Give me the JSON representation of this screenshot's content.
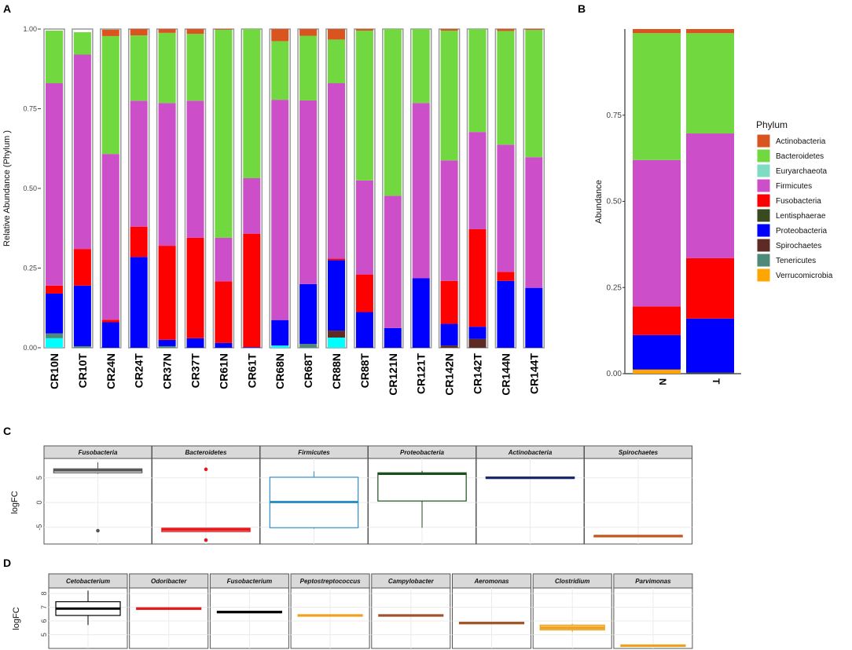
{
  "panel_labels": {
    "a": "A",
    "b": "B",
    "c": "C",
    "d": "D"
  },
  "colors": {
    "Actinobacteria": "#d9541e",
    "Bacteroidetes": "#72d840",
    "Euryarchaeota": "#7fdcc4",
    "Firmicutes": "#cc4fc9",
    "Fusobacteria": "#ff0000",
    "Lentisphaerae": "#3a4a20",
    "Proteobacteria": "#0000ff",
    "Spirochaetes": "#5e2a24",
    "Tenericutes": "#4d8a7a",
    "Verrucomicrobia": "#ffa500",
    "cyan": "#00ffff"
  },
  "chart_data": [
    {
      "panel": "A",
      "type": "bar",
      "stacked": true,
      "ylabel": "Relative Abundance (Phylum )",
      "ylim": [
        0,
        1
      ],
      "yticks": [
        "0.00",
        "0.25",
        "0.50",
        "0.75",
        "1.00"
      ],
      "categories": [
        "CR10N",
        "CR10T",
        "CR24N",
        "CR24T",
        "CR37N",
        "CR37T",
        "CR61N",
        "CR61T",
        "CR68N",
        "CR68T",
        "CR88N",
        "CR88T",
        "CR121N",
        "CR121T",
        "CR142N",
        "CR142T",
        "CR144N",
        "CR144T"
      ],
      "series": [
        {
          "color": "#00ffff",
          "values": [
            0.03,
            0,
            0,
            0,
            0,
            0,
            0,
            0,
            0.007,
            0,
            0.032,
            0,
            0,
            0,
            0,
            0,
            0,
            0
          ]
        },
        {
          "color": "#4d8a7a",
          "values": [
            0.015,
            0.005,
            0,
            0,
            0.005,
            0,
            0,
            0,
            0,
            0.012,
            0,
            0,
            0,
            0,
            0,
            0,
            0,
            0
          ]
        },
        {
          "color": "#5e2a24",
          "values": [
            0,
            0,
            0,
            0,
            0,
            0,
            0,
            0,
            0,
            0,
            0.022,
            0,
            0,
            0,
            0.007,
            0.028,
            0,
            0
          ]
        },
        {
          "color": "#0000ff",
          "values": [
            0.125,
            0.19,
            0.08,
            0.285,
            0.02,
            0.03,
            0.015,
            0.002,
            0.08,
            0.188,
            0.221,
            0.112,
            0.062,
            0.218,
            0.068,
            0.038,
            0.21,
            0.188
          ]
        },
        {
          "color": "#ff0000",
          "values": [
            0.025,
            0.115,
            0.008,
            0.095,
            0.295,
            0.315,
            0.193,
            0.356,
            0,
            0,
            0.005,
            0.118,
            0,
            0,
            0.135,
            0.306,
            0.028,
            0
          ]
        },
        {
          "color": "#cc4fc9",
          "values": [
            0.635,
            0.61,
            0.52,
            0.395,
            0.448,
            0.43,
            0.137,
            0.174,
            0.691,
            0.576,
            0.55,
            0.295,
            0.415,
            0.55,
            0.378,
            0.305,
            0.399,
            0.41
          ]
        },
        {
          "color": "#72d840",
          "values": [
            0.165,
            0.07,
            0.37,
            0.205,
            0.22,
            0.21,
            0.653,
            0.468,
            0.184,
            0.203,
            0.137,
            0.47,
            0.523,
            0.232,
            0.407,
            0.323,
            0.357,
            0.399
          ]
        },
        {
          "color": "#d9541e",
          "values": [
            0,
            0,
            0.02,
            0.02,
            0.012,
            0.015,
            0.002,
            0,
            0.038,
            0.021,
            0.033,
            0.005,
            0,
            0,
            0.005,
            0,
            0.006,
            0.003
          ]
        }
      ]
    },
    {
      "panel": "B",
      "type": "bar",
      "stacked": true,
      "ylabel": "Abundance",
      "ylim": [
        0,
        1
      ],
      "yticks": [
        "0.00",
        "0.25",
        "0.50",
        "0.75"
      ],
      "categories": [
        "N",
        "T"
      ],
      "legend": {
        "title": "Phylum",
        "position": "right",
        "entries": [
          "Actinobacteria",
          "Bacteroidetes",
          "Euryarchaeota",
          "Firmicutes",
          "Fusobacteria",
          "Lentisphaerae",
          "Proteobacteria",
          "Spirochaetes",
          "Tenericutes",
          "Verrucomicrobia"
        ]
      },
      "series": [
        {
          "name": "Verrucomicrobia",
          "values": [
            0.012,
            0
          ]
        },
        {
          "name": "Lentisphaerae",
          "values": [
            0,
            0.003
          ]
        },
        {
          "name": "Proteobacteria",
          "values": [
            0.1,
            0.157
          ]
        },
        {
          "name": "Fusobacteria",
          "values": [
            0.083,
            0.175
          ]
        },
        {
          "name": "Firmicutes",
          "values": [
            0.425,
            0.362
          ]
        },
        {
          "name": "Bacteroidetes",
          "values": [
            0.368,
            0.291
          ]
        },
        {
          "name": "Actinobacteria",
          "values": [
            0.012,
            0.012
          ]
        }
      ]
    },
    {
      "panel": "C",
      "type": "box",
      "ylabel": "logFC",
      "ylim": [
        -8.4,
        8.9
      ],
      "yticks": [
        "-5",
        "0",
        "5"
      ],
      "facets": [
        {
          "name": "Fusobacteria",
          "color": "#555555",
          "q1": 6.0,
          "median": 6.5,
          "q3": 6.8,
          "min": 5.8,
          "max": 8.1,
          "outliers": [
            -5.7
          ]
        },
        {
          "name": "Bacteroidetes",
          "color": "#e31a1c",
          "q1": -5.9,
          "median": -5.5,
          "q3": -5.2,
          "min": -5.9,
          "max": -5.2,
          "outliers": [
            6.7,
            -7.6
          ]
        },
        {
          "name": "Firmicutes",
          "color": "#2f8fc8",
          "q1": -5.1,
          "median": 0.1,
          "q3": 5.1,
          "min": -5.3,
          "max": 6.3,
          "outliers": []
        },
        {
          "name": "Proteobacteria",
          "color": "#1e4d1e",
          "q1": 0.3,
          "median": 5.8,
          "q3": 6.0,
          "min": -5.1,
          "max": 6.4,
          "outliers": []
        },
        {
          "name": "Actinobacteria",
          "color": "#1a2a6c",
          "q1": 5.0,
          "median": 5.0,
          "q3": 5.0,
          "min": 5.0,
          "max": 5.0,
          "outliers": []
        },
        {
          "name": "Spirochaetes",
          "color": "#c8561a",
          "q1": -6.8,
          "median": -6.8,
          "q3": -6.8,
          "min": -6.8,
          "max": -6.8,
          "outliers": []
        }
      ]
    },
    {
      "panel": "D",
      "type": "box",
      "ylabel": "logFC",
      "ylim": [
        4.0,
        8.4
      ],
      "yticks": [
        "5",
        "6",
        "7",
        "8"
      ],
      "facets": [
        {
          "name": "Cetobacterium",
          "color": "#000000",
          "q1": 6.4,
          "median": 6.9,
          "q3": 7.4,
          "min": 5.7,
          "max": 8.2,
          "outliers": []
        },
        {
          "name": "Odoribacter",
          "color": "#e31a1c",
          "q1": 6.9,
          "median": 6.9,
          "q3": 6.9,
          "min": 6.9,
          "max": 6.9,
          "outliers": []
        },
        {
          "name": "Fusobacterium",
          "color": "#000000",
          "q1": 6.65,
          "median": 6.65,
          "q3": 6.65,
          "min": 6.6,
          "max": 6.7,
          "outliers": []
        },
        {
          "name": "Peptostreptococcus",
          "color": "#f0a020",
          "q1": 6.4,
          "median": 6.4,
          "q3": 6.4,
          "min": 6.4,
          "max": 6.4,
          "outliers": []
        },
        {
          "name": "Campylobacter",
          "color": "#a0522d",
          "q1": 6.4,
          "median": 6.4,
          "q3": 6.4,
          "min": 6.4,
          "max": 6.4,
          "outliers": []
        },
        {
          "name": "Aeromonas",
          "color": "#a0582a",
          "q1": 5.85,
          "median": 5.85,
          "q3": 5.85,
          "min": 5.85,
          "max": 5.85,
          "outliers": []
        },
        {
          "name": "Clostridium",
          "color": "#f0a020",
          "fill": "#f5c86a",
          "q1": 5.35,
          "median": 5.5,
          "q3": 5.7,
          "min": 5.2,
          "max": 5.8,
          "outliers": []
        },
        {
          "name": "Parvimonas",
          "color": "#f0a020",
          "q1": 4.2,
          "median": 4.2,
          "q3": 4.2,
          "min": 4.2,
          "max": 4.2,
          "outliers": []
        }
      ]
    }
  ]
}
